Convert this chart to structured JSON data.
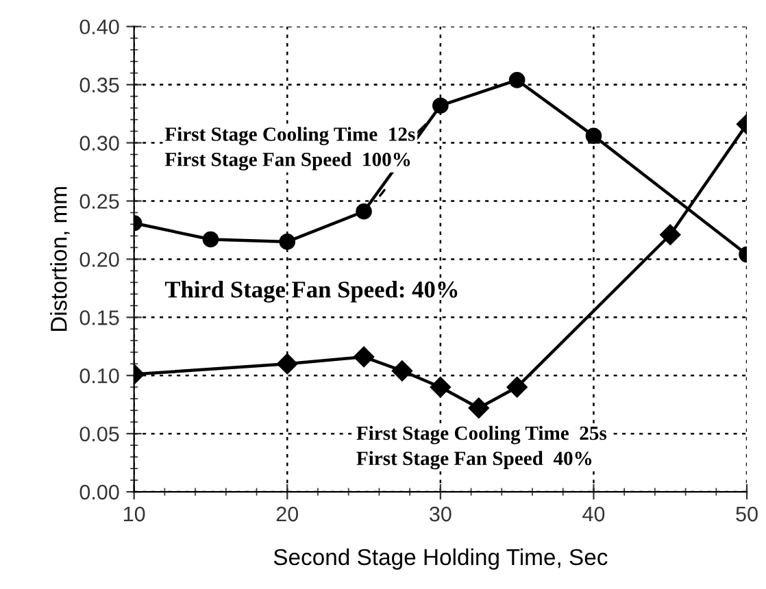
{
  "chart_data": {
    "type": "line",
    "xlabel": "Second Stage Holding Time, Sec",
    "ylabel": "Distortion, mm",
    "series": [
      {
        "color": "#000000",
        "marker": "circle",
        "x": [
          10,
          15,
          20,
          25,
          30,
          35,
          40,
          50
        ],
        "values": [
          0.231,
          0.217,
          0.215,
          0.241,
          0.332,
          0.354,
          0.306,
          0.204
        ]
      },
      {
        "color": "#000000",
        "marker": "diamond",
        "x": [
          10,
          20,
          25,
          27.5,
          30,
          32.5,
          35,
          45,
          50
        ],
        "values": [
          0.101,
          0.11,
          0.116,
          0.104,
          0.09,
          0.072,
          0.09,
          0.221,
          0.316
        ]
      }
    ],
    "xlim": [
      10,
      50
    ],
    "xticks": [
      10,
      20,
      30,
      40,
      50
    ],
    "ylim": [
      0,
      0.4
    ],
    "yticks": [
      {
        "value": 0,
        "label": "0.00"
      },
      {
        "value": 0.05,
        "label": "0.05"
      },
      {
        "value": 0.1,
        "label": "0.10"
      },
      {
        "value": 0.15,
        "label": "0.15"
      },
      {
        "value": 0.2,
        "label": "0.20"
      },
      {
        "value": 0.25,
        "label": "0.25"
      },
      {
        "value": 0.3,
        "label": "0.30"
      },
      {
        "value": 0.35,
        "label": "0.35"
      },
      {
        "value": 0.4,
        "label": "0.40"
      }
    ],
    "grid": true,
    "line_style": "solid",
    "annotations": [
      "First Stage Cooling Time  12s\nFirst Stage Fan Speed  100%",
      "Third Stage Fan Speed: 40%",
      "First Stage Cooling Time  25s\nFirst Stage Fan Speed  40%"
    ]
  }
}
